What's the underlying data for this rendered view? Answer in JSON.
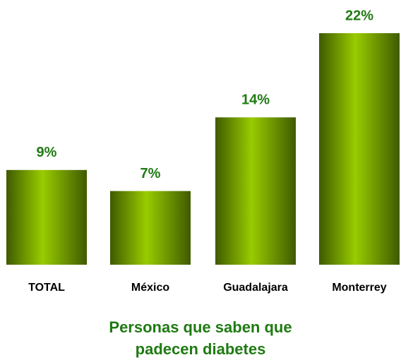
{
  "chart_data": {
    "type": "bar",
    "title": "Personas que saben que padecen diabetes",
    "categories": [
      "TOTAL",
      "México",
      "Guadalajara",
      "Monterrey"
    ],
    "values": [
      9,
      7,
      14,
      22
    ],
    "value_labels": [
      "9%",
      "7%",
      "14%",
      "22%"
    ],
    "color": "#99cc00"
  }
}
